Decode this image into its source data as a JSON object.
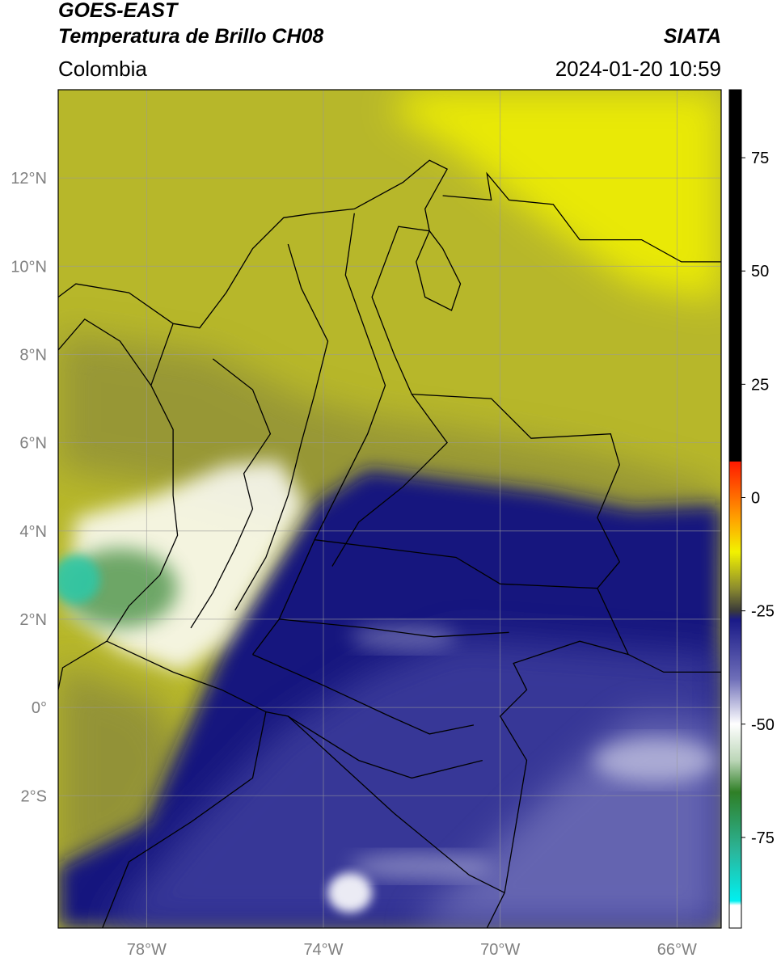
{
  "header": {
    "title_line1": "GOES-EAST",
    "title_line2": "Temperatura de Brillo CH08",
    "region": "Colombia",
    "organization": "SIATA",
    "timestamp": "2024-01-20 10:59"
  },
  "map": {
    "lon_range": [
      -80,
      -65
    ],
    "lat_range": [
      -5,
      14
    ],
    "lat_ticks": [
      {
        "value": 12,
        "label": "12°N"
      },
      {
        "value": 10,
        "label": "10°N"
      },
      {
        "value": 8,
        "label": "8°N"
      },
      {
        "value": 6,
        "label": "6°N"
      },
      {
        "value": 4,
        "label": "4°N"
      },
      {
        "value": 2,
        "label": "2°N"
      },
      {
        "value": 0,
        "label": "0°"
      },
      {
        "value": -2,
        "label": "2°S"
      }
    ],
    "lon_ticks": [
      {
        "value": -78,
        "label": "78°W"
      },
      {
        "value": -74,
        "label": "74°W"
      },
      {
        "value": -70,
        "label": "70°W"
      },
      {
        "value": -66,
        "label": "66°W"
      }
    ],
    "colors": {
      "warm_yellow": "#b7b72a",
      "bright_yellow": "#f2f200",
      "olive": "#8a8a3a",
      "deep_blue": "#15157e",
      "blue": "#3d3d9c",
      "light_blue": "#8a8ac6",
      "white": "#ffffff",
      "green": "#5e9e5a",
      "teal": "#2ec7a6",
      "border": "#000000",
      "grid": "#9a9a9a"
    }
  },
  "colorbar": {
    "range": [
      -95,
      90
    ],
    "ticks": [
      {
        "value": 75,
        "label": "75"
      },
      {
        "value": 50,
        "label": "50"
      },
      {
        "value": 25,
        "label": "25"
      },
      {
        "value": 0,
        "label": "0"
      },
      {
        "value": -25,
        "label": "-25"
      },
      {
        "value": -50,
        "label": "-50"
      },
      {
        "value": -75,
        "label": "-75"
      }
    ],
    "stops": [
      {
        "value": 90,
        "color": "#000000"
      },
      {
        "value": 8,
        "color": "#000000"
      },
      {
        "value": 7.9,
        "color": "#ff1a00"
      },
      {
        "value": -5,
        "color": "#ffa500"
      },
      {
        "value": -12,
        "color": "#f2f200"
      },
      {
        "value": -20,
        "color": "#8c8c2e"
      },
      {
        "value": -25,
        "color": "#3a3a3a"
      },
      {
        "value": -27,
        "color": "#1a1a88"
      },
      {
        "value": -40,
        "color": "#6e6eb8"
      },
      {
        "value": -50,
        "color": "#ffffff"
      },
      {
        "value": -58,
        "color": "#bcd6b8"
      },
      {
        "value": -65,
        "color": "#2f7f26"
      },
      {
        "value": -78,
        "color": "#2bb59a"
      },
      {
        "value": -89,
        "color": "#00f0f0"
      },
      {
        "value": -90,
        "color": "#ffffff"
      },
      {
        "value": -95,
        "color": "#ffffff"
      }
    ]
  }
}
